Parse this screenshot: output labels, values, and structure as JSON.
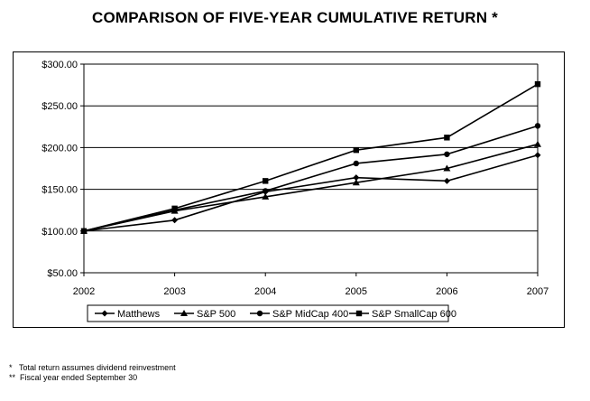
{
  "chart_data": {
    "type": "line",
    "title": "COMPARISON OF FIVE-YEAR CUMULATIVE RETURN *",
    "x": [
      "2002",
      "2003",
      "2004",
      "2005",
      "2006",
      "2007"
    ],
    "yticks": [
      "$300.00",
      "$250.00",
      "$200.00",
      "$150.00",
      "$100.00",
      "$50.00"
    ],
    "ylim": [
      50,
      300
    ],
    "grid": true,
    "legend_position": "bottom",
    "series": [
      {
        "name": "Matthews",
        "marker": "diamond",
        "values": [
          100,
          113,
          147,
          164,
          160,
          191
        ]
      },
      {
        "name": "S&P 500",
        "marker": "triangle",
        "values": [
          100,
          124,
          141,
          158,
          175,
          204
        ]
      },
      {
        "name": "S&P MidCap 400",
        "marker": "circle",
        "values": [
          100,
          125,
          148,
          181,
          192,
          226
        ]
      },
      {
        "name": "S&P SmallCap 600",
        "marker": "square",
        "values": [
          100,
          127,
          160,
          197,
          212,
          276
        ]
      }
    ]
  },
  "footnotes": [
    {
      "mark": "*",
      "text": "Total return assumes dividend reinvestment"
    },
    {
      "mark": "**",
      "text": "Fiscal year ended September 30"
    }
  ]
}
